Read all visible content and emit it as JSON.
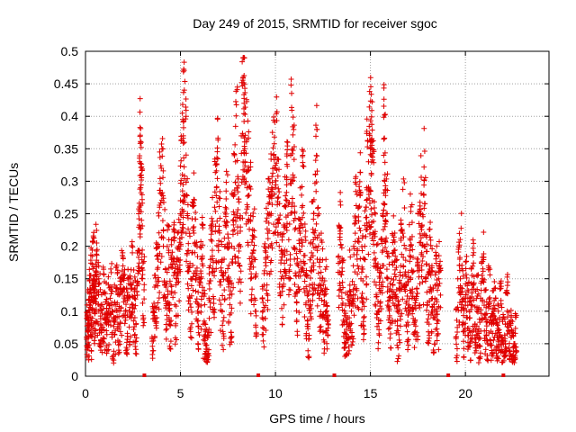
{
  "chart_data": {
    "type": "scatter",
    "title": "Day 249 of 2015, SRMTID for receiver sgoc",
    "xlabel": "GPS time / hours",
    "ylabel": "SRMTID / TECUs",
    "xlim": [
      0,
      24.4
    ],
    "ylim": [
      0,
      0.5
    ],
    "x_ticks": [
      "0",
      "5",
      "10",
      "15",
      "20"
    ],
    "x_tick_values": [
      0,
      5,
      10,
      15,
      20
    ],
    "y_ticks": [
      "0",
      "0.05",
      "0.1",
      "0.15",
      "0.2",
      "0.25",
      "0.3",
      "0.35",
      "0.4",
      "0.45",
      "0.5"
    ],
    "y_tick_values": [
      0,
      0.05,
      0.1,
      0.15,
      0.2,
      0.25,
      0.3,
      0.35,
      0.4,
      0.45,
      0.5
    ],
    "grid": true,
    "marker": "+",
    "color": "#e00000",
    "data_gap_hours": [
      3.1,
      9.1,
      13.1,
      19.1,
      22.0
    ],
    "points": [
      [
        0.05,
        0.06
      ],
      [
        0.1,
        0.09
      ],
      [
        0.15,
        0.07
      ],
      [
        0.2,
        0.11
      ],
      [
        0.25,
        0.13
      ],
      [
        0.3,
        0.08
      ],
      [
        0.35,
        0.14
      ],
      [
        0.4,
        0.15
      ],
      [
        0.45,
        0.1
      ],
      [
        0.5,
        0.12
      ],
      [
        0.55,
        0.16
      ],
      [
        0.6,
        0.13
      ],
      [
        0.7,
        0.1
      ],
      [
        0.8,
        0.08
      ],
      [
        0.9,
        0.11
      ],
      [
        1.0,
        0.09
      ],
      [
        1.1,
        0.07
      ],
      [
        1.2,
        0.1
      ],
      [
        1.3,
        0.12
      ],
      [
        1.4,
        0.06
      ],
      [
        1.5,
        0.09
      ],
      [
        1.6,
        0.11
      ],
      [
        1.7,
        0.08
      ],
      [
        1.8,
        0.1
      ],
      [
        1.9,
        0.13
      ],
      [
        2.0,
        0.15
      ],
      [
        2.1,
        0.09
      ],
      [
        2.2,
        0.12
      ],
      [
        2.3,
        0.1
      ],
      [
        2.4,
        0.14
      ],
      [
        2.5,
        0.11
      ],
      [
        2.6,
        0.09
      ],
      [
        2.7,
        0.13
      ],
      [
        2.8,
        0.25
      ],
      [
        2.85,
        0.33
      ],
      [
        2.9,
        0.29
      ],
      [
        2.95,
        0.24
      ],
      [
        3.0,
        0.15
      ],
      [
        3.5,
        0.06
      ],
      [
        3.6,
        0.1
      ],
      [
        3.7,
        0.14
      ],
      [
        3.8,
        0.18
      ],
      [
        3.9,
        0.26
      ],
      [
        4.0,
        0.28
      ],
      [
        4.1,
        0.2
      ],
      [
        4.2,
        0.12
      ],
      [
        4.3,
        0.16
      ],
      [
        4.4,
        0.09
      ],
      [
        4.5,
        0.14
      ],
      [
        4.6,
        0.18
      ],
      [
        4.7,
        0.11
      ],
      [
        4.8,
        0.15
      ],
      [
        4.9,
        0.2
      ],
      [
        5.0,
        0.27
      ],
      [
        5.1,
        0.31
      ],
      [
        5.15,
        0.37
      ],
      [
        5.2,
        0.36
      ],
      [
        5.3,
        0.22
      ],
      [
        5.4,
        0.17
      ],
      [
        5.5,
        0.12
      ],
      [
        5.6,
        0.19
      ],
      [
        5.7,
        0.23
      ],
      [
        5.8,
        0.15
      ],
      [
        5.9,
        0.1
      ],
      [
        6.0,
        0.14
      ],
      [
        6.1,
        0.18
      ],
      [
        6.2,
        0.08
      ],
      [
        6.3,
        0.05
      ],
      [
        6.4,
        0.03
      ],
      [
        6.5,
        0.12
      ],
      [
        6.6,
        0.21
      ],
      [
        6.7,
        0.16
      ],
      [
        6.8,
        0.26
      ],
      [
        6.9,
        0.29
      ],
      [
        7.0,
        0.2
      ],
      [
        7.1,
        0.14
      ],
      [
        7.2,
        0.1
      ],
      [
        7.3,
        0.18
      ],
      [
        7.4,
        0.23
      ],
      [
        7.5,
        0.15
      ],
      [
        7.6,
        0.11
      ],
      [
        7.7,
        0.2
      ],
      [
        7.8,
        0.28
      ],
      [
        7.9,
        0.33
      ],
      [
        8.0,
        0.22
      ],
      [
        8.1,
        0.17
      ],
      [
        8.2,
        0.37
      ],
      [
        8.3,
        0.46
      ],
      [
        8.35,
        0.42
      ],
      [
        8.4,
        0.33
      ],
      [
        8.5,
        0.29
      ],
      [
        8.6,
        0.24
      ],
      [
        8.7,
        0.15
      ],
      [
        8.8,
        0.19
      ],
      [
        8.9,
        0.12
      ],
      [
        9.3,
        0.09
      ],
      [
        9.4,
        0.14
      ],
      [
        9.5,
        0.18
      ],
      [
        9.6,
        0.22
      ],
      [
        9.7,
        0.25
      ],
      [
        9.8,
        0.29
      ],
      [
        9.9,
        0.34
      ],
      [
        10.0,
        0.32
      ],
      [
        10.1,
        0.24
      ],
      [
        10.2,
        0.2
      ],
      [
        10.3,
        0.15
      ],
      [
        10.4,
        0.19
      ],
      [
        10.5,
        0.23
      ],
      [
        10.6,
        0.27
      ],
      [
        10.7,
        0.21
      ],
      [
        10.8,
        0.34
      ],
      [
        10.9,
        0.3
      ],
      [
        11.0,
        0.18
      ],
      [
        11.1,
        0.13
      ],
      [
        11.2,
        0.17
      ],
      [
        11.3,
        0.22
      ],
      [
        11.4,
        0.26
      ],
      [
        11.5,
        0.16
      ],
      [
        11.6,
        0.11
      ],
      [
        11.7,
        0.08
      ],
      [
        11.8,
        0.14
      ],
      [
        11.9,
        0.19
      ],
      [
        12.0,
        0.21
      ],
      [
        12.1,
        0.31
      ],
      [
        12.2,
        0.18
      ],
      [
        12.3,
        0.12
      ],
      [
        12.4,
        0.16
      ],
      [
        12.5,
        0.09
      ],
      [
        12.6,
        0.13
      ],
      [
        12.7,
        0.07
      ],
      [
        13.3,
        0.16
      ],
      [
        13.4,
        0.21
      ],
      [
        13.5,
        0.12
      ],
      [
        13.6,
        0.08
      ],
      [
        13.7,
        0.05
      ],
      [
        13.8,
        0.09
      ],
      [
        13.9,
        0.13
      ],
      [
        14.0,
        0.1
      ],
      [
        14.1,
        0.17
      ],
      [
        14.2,
        0.22
      ],
      [
        14.3,
        0.18
      ],
      [
        14.4,
        0.26
      ],
      [
        14.5,
        0.15
      ],
      [
        14.6,
        0.12
      ],
      [
        14.7,
        0.2
      ],
      [
        14.8,
        0.29
      ],
      [
        14.9,
        0.33
      ],
      [
        15.0,
        0.35
      ],
      [
        15.05,
        0.31
      ],
      [
        15.1,
        0.27
      ],
      [
        15.2,
        0.19
      ],
      [
        15.3,
        0.14
      ],
      [
        15.4,
        0.1
      ],
      [
        15.5,
        0.16
      ],
      [
        15.6,
        0.21
      ],
      [
        15.7,
        0.34
      ],
      [
        15.75,
        0.3
      ],
      [
        15.8,
        0.24
      ],
      [
        15.9,
        0.13
      ],
      [
        16.0,
        0.09
      ],
      [
        16.1,
        0.15
      ],
      [
        16.2,
        0.19
      ],
      [
        16.3,
        0.12
      ],
      [
        16.4,
        0.07
      ],
      [
        16.5,
        0.11
      ],
      [
        16.6,
        0.17
      ],
      [
        16.7,
        0.22
      ],
      [
        16.8,
        0.14
      ],
      [
        16.9,
        0.1
      ],
      [
        17.0,
        0.16
      ],
      [
        17.1,
        0.2
      ],
      [
        17.2,
        0.13
      ],
      [
        17.3,
        0.08
      ],
      [
        17.4,
        0.12
      ],
      [
        17.5,
        0.18
      ],
      [
        17.6,
        0.25
      ],
      [
        17.7,
        0.19
      ],
      [
        17.8,
        0.28
      ],
      [
        17.9,
        0.15
      ],
      [
        18.0,
        0.11
      ],
      [
        18.1,
        0.17
      ],
      [
        18.2,
        0.13
      ],
      [
        18.3,
        0.09
      ],
      [
        18.4,
        0.14
      ],
      [
        18.5,
        0.1
      ],
      [
        18.6,
        0.15
      ],
      [
        19.5,
        0.06
      ],
      [
        19.6,
        0.15
      ],
      [
        19.7,
        0.18
      ],
      [
        19.8,
        0.11
      ],
      [
        19.9,
        0.08
      ],
      [
        20.0,
        0.12
      ],
      [
        20.1,
        0.09
      ],
      [
        20.2,
        0.07
      ],
      [
        20.3,
        0.11
      ],
      [
        20.4,
        0.14
      ],
      [
        20.5,
        0.08
      ],
      [
        20.6,
        0.1
      ],
      [
        20.7,
        0.06
      ],
      [
        20.8,
        0.12
      ],
      [
        20.9,
        0.15
      ],
      [
        21.0,
        0.09
      ],
      [
        21.1,
        0.07
      ],
      [
        21.2,
        0.11
      ],
      [
        21.3,
        0.05
      ],
      [
        21.4,
        0.08
      ],
      [
        21.5,
        0.1
      ],
      [
        21.6,
        0.04
      ],
      [
        21.7,
        0.07
      ],
      [
        21.8,
        0.09
      ],
      [
        21.9,
        0.06
      ],
      [
        22.0,
        0.05
      ],
      [
        22.1,
        0.08
      ],
      [
        22.2,
        0.1
      ],
      [
        22.3,
        0.04
      ],
      [
        22.4,
        0.06
      ],
      [
        22.5,
        0.03
      ],
      [
        22.6,
        0.05
      ]
    ]
  }
}
